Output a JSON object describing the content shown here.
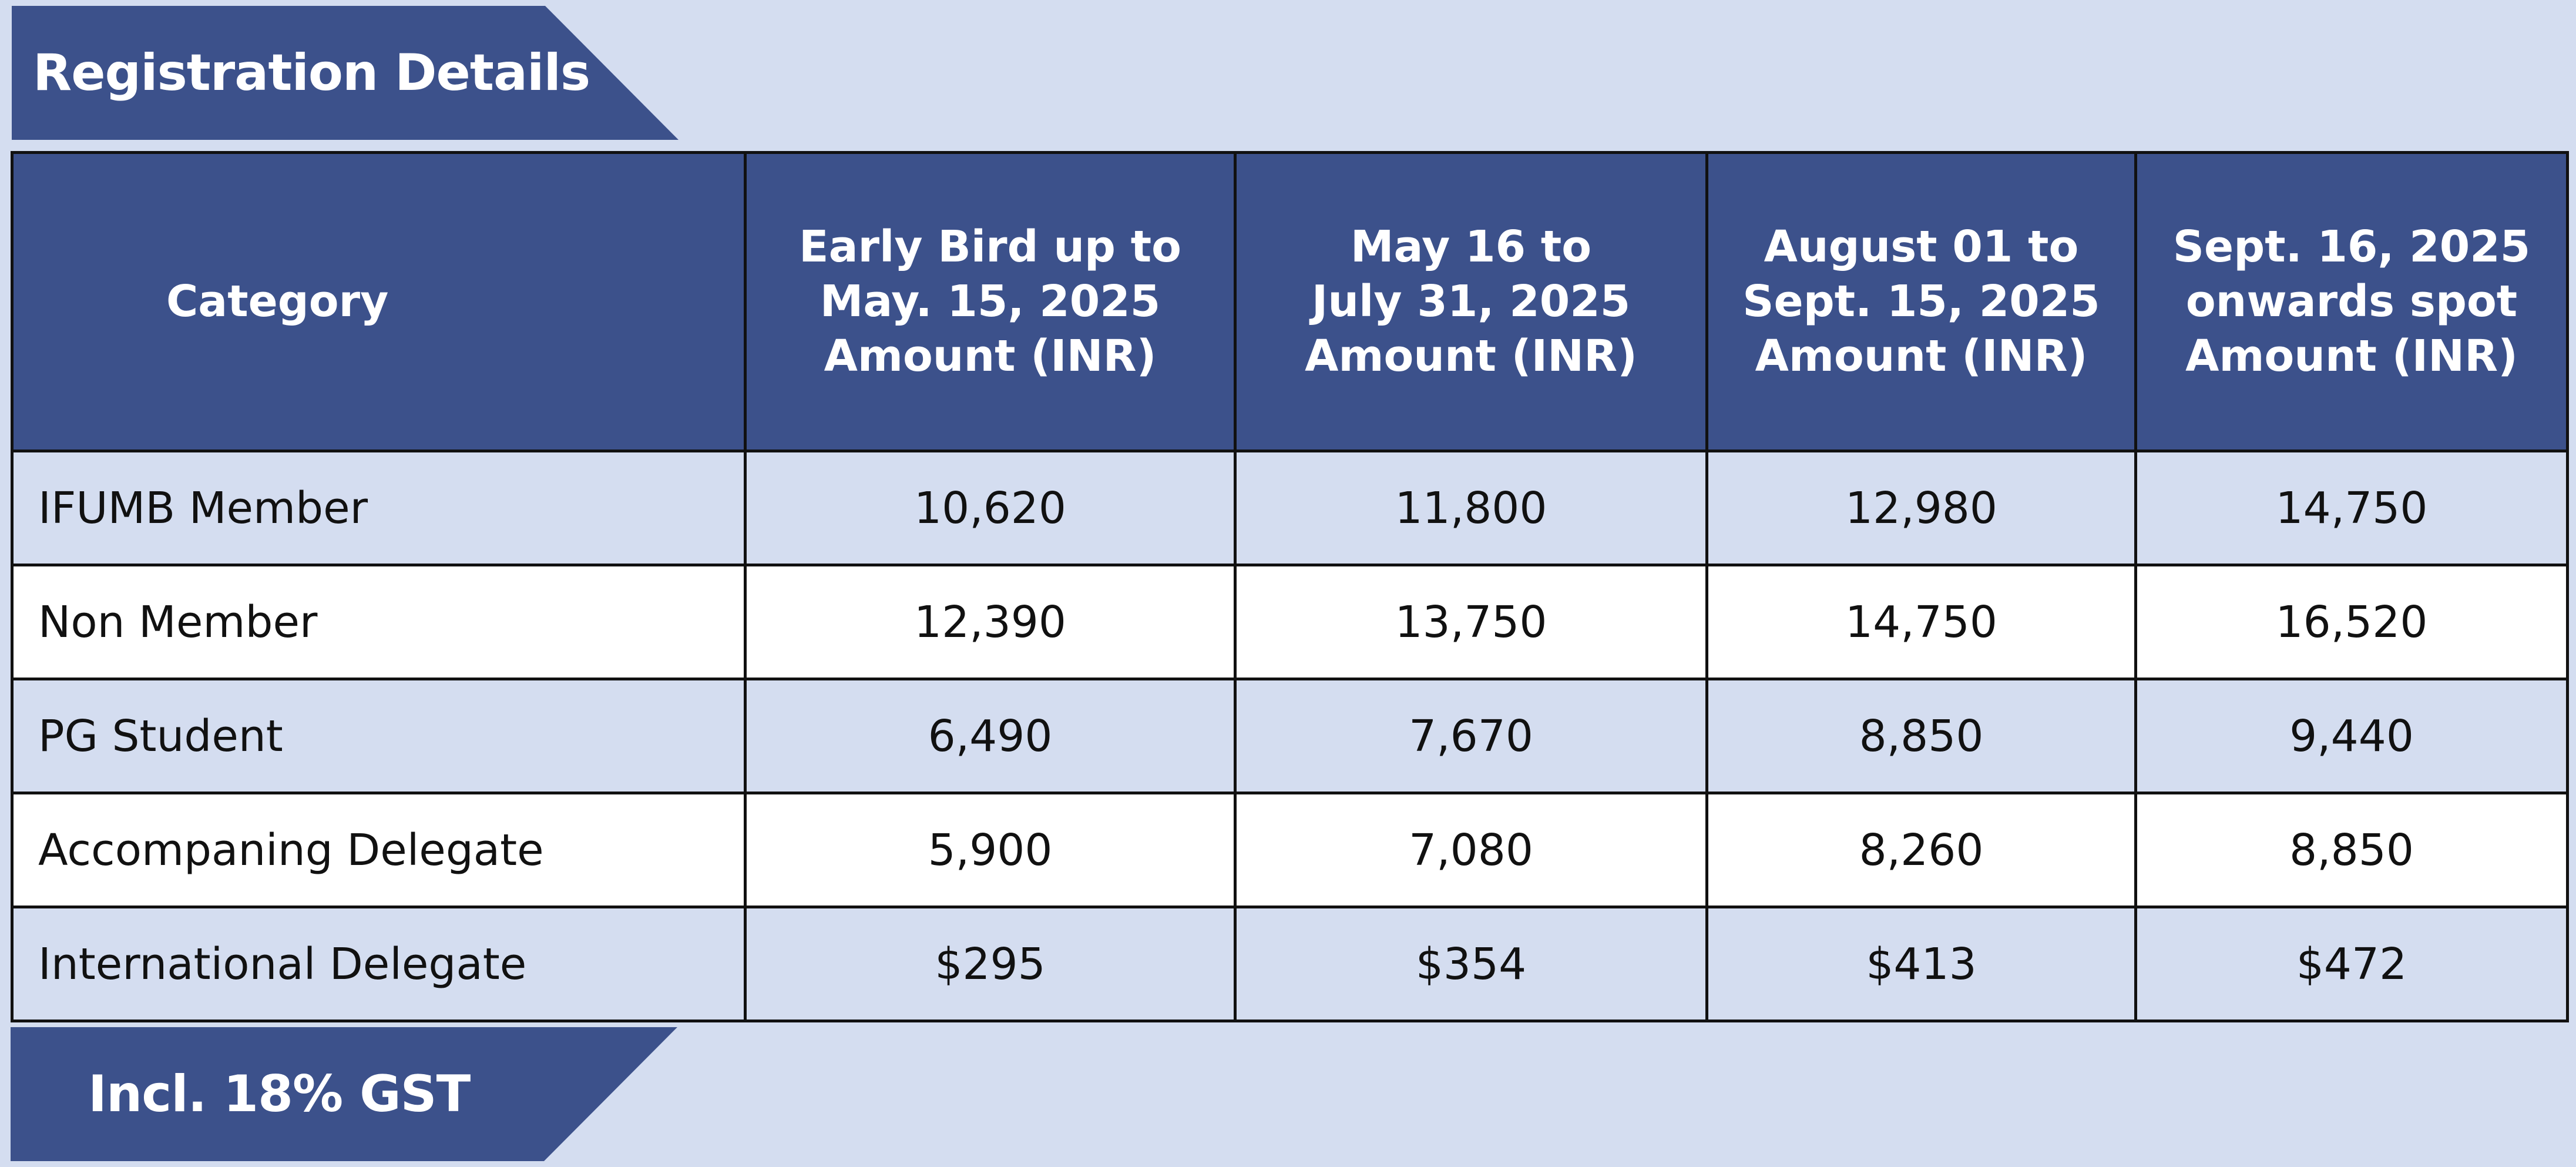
{
  "header": {
    "title": "Registration Details"
  },
  "table": {
    "columns": [
      {
        "lines": [
          "Category"
        ]
      },
      {
        "lines": [
          "Early Bird up to",
          "May. 15, 2025",
          "Amount (INR)"
        ]
      },
      {
        "lines": [
          "May 16 to",
          "July 31, 2025",
          "Amount (INR)"
        ]
      },
      {
        "lines": [
          "August 01 to",
          "Sept. 15, 2025",
          "Amount (INR)"
        ]
      },
      {
        "lines": [
          "Sept. 16, 2025",
          "onwards spot",
          "Amount (INR)"
        ]
      }
    ],
    "rows": [
      {
        "category": "IFUMB Member",
        "values": [
          "10,620",
          "11,800",
          "12,980",
          "14,750"
        ]
      },
      {
        "category": "Non Member",
        "values": [
          "12,390",
          "13,750",
          "14,750",
          "16,520"
        ]
      },
      {
        "category": "PG Student",
        "values": [
          "6,490",
          "7,670",
          "8,850",
          "9,440"
        ]
      },
      {
        "category": "Accompaning Delegate",
        "values": [
          "5,900",
          "7,080",
          "8,260",
          "8,850"
        ]
      },
      {
        "category": "International Delegate",
        "values": [
          "$295",
          "$354",
          "$413",
          "$472"
        ]
      }
    ]
  },
  "footer": {
    "note": "Incl. 18% GST"
  },
  "colors": {
    "banner": "#3c518b",
    "background": "#d4ddf0",
    "row_alt": "#ffffff"
  }
}
